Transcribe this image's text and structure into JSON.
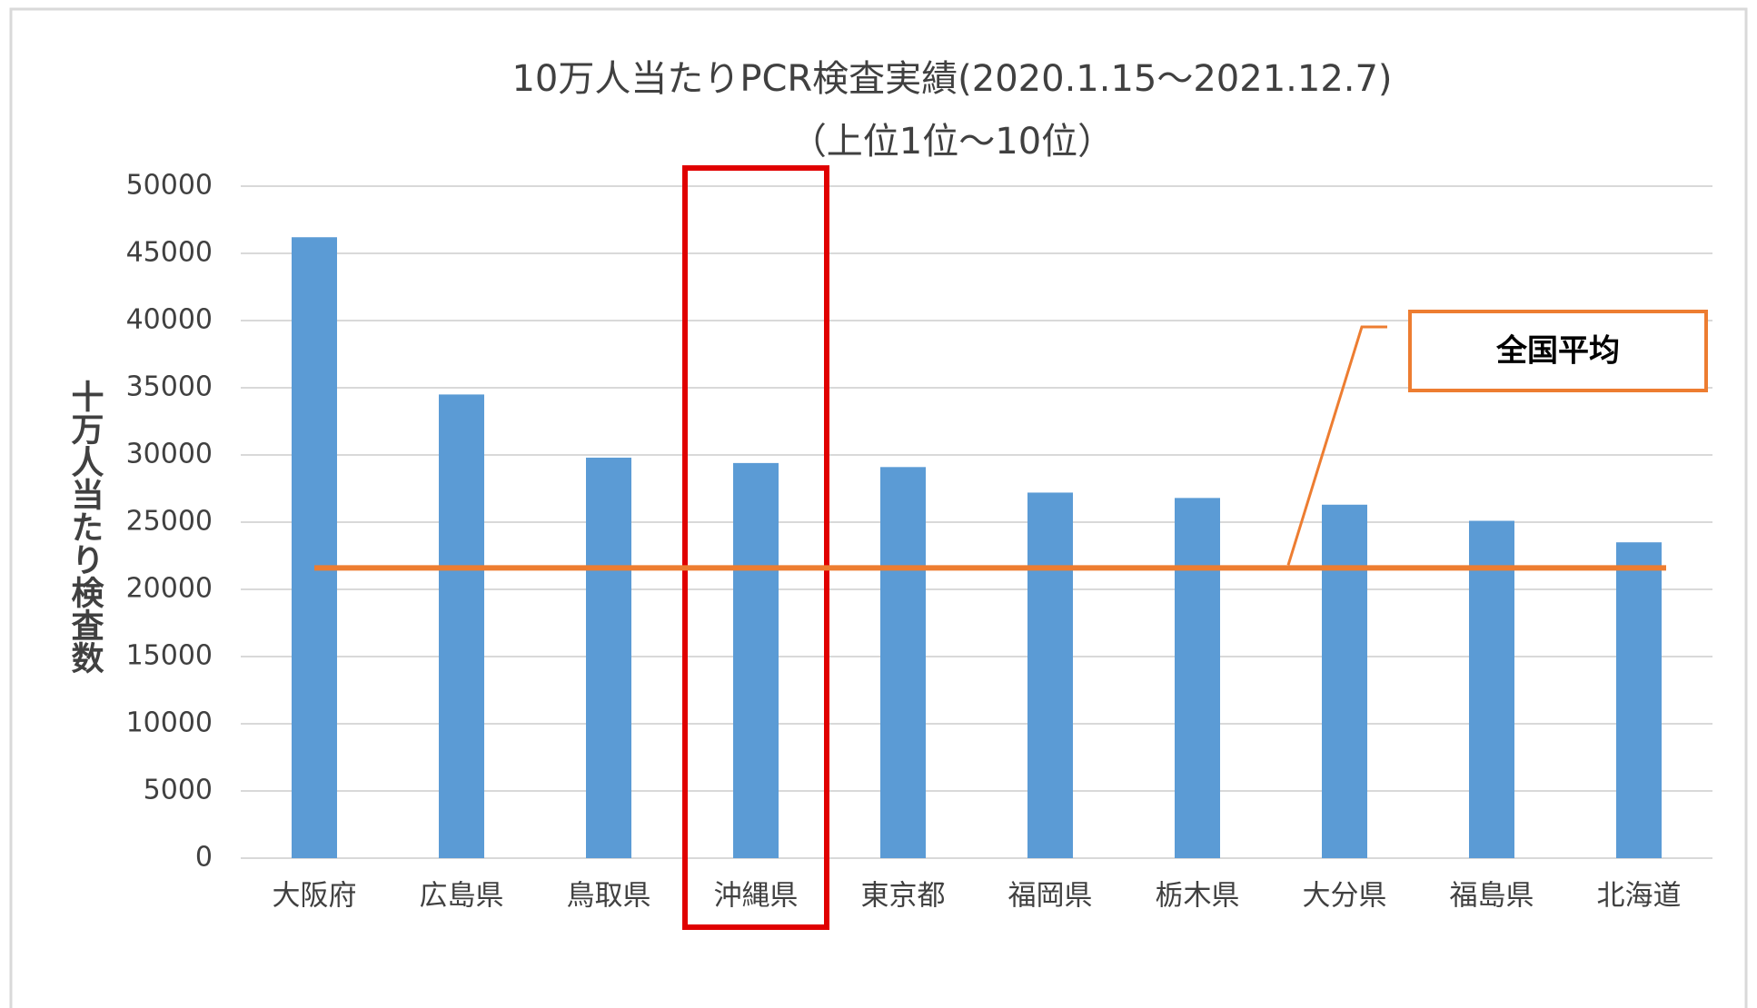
{
  "chart_data": {
    "type": "bar",
    "title": "10万人当たりPCR検査実績(2020.1.15～2021.12.7)",
    "subtitle": "（上位1位～10位）",
    "y_label": "十万人当たり検査数",
    "categories": [
      "大阪府",
      "広島県",
      "鳥取県",
      "沖縄県",
      "東京都",
      "福岡県",
      "栃木県",
      "大分県",
      "福島県",
      "北海道"
    ],
    "values": [
      46200,
      34500,
      29800,
      29400,
      29100,
      27200,
      26800,
      26300,
      25100,
      23500
    ],
    "color": "#5b9bd5",
    "ylim": [
      0,
      50000
    ],
    "yticks": [
      0,
      5000,
      10000,
      15000,
      20000,
      25000,
      30000,
      35000,
      40000,
      45000,
      50000
    ],
    "grid": true,
    "reference_line": {
      "label": "全国平均",
      "value": 21600,
      "color": "#ed7d31"
    },
    "highlight": "沖縄県",
    "highlight_color": "#e00000"
  }
}
